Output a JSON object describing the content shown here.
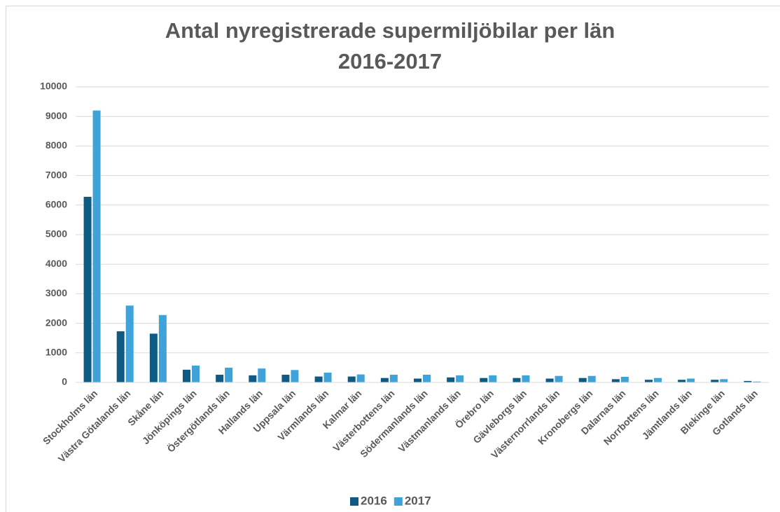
{
  "chart_data": {
    "type": "bar",
    "title": "Antal nyregistrerade supermiljöbilar per län 2016-2017",
    "categories": [
      "Stockholms län",
      "Västra Götalands län",
      "Skåne län",
      "Jönköpings län",
      "Östergötlands län",
      "Hallands län",
      "Uppsala län",
      "Värmlands län",
      "Kalmar län",
      "Västerbottens län",
      "Södermanlands län",
      "Västmanlands län",
      "Örebro län",
      "Gävleborgs län",
      "Västernorrlands län",
      "Kronobergs län",
      "Dalarnas län",
      "Norrbottens län",
      "Jämtlands län",
      "Blekinge län",
      "Gotlands län"
    ],
    "series": [
      {
        "name": "2016",
        "color": "#0e5a82",
        "values": [
          6280,
          1730,
          1650,
          430,
          260,
          240,
          260,
          200,
          200,
          150,
          130,
          170,
          150,
          150,
          130,
          150,
          110,
          90,
          90,
          90,
          50
        ]
      },
      {
        "name": "2017",
        "color": "#3fa2d9",
        "values": [
          9200,
          2600,
          2280,
          570,
          500,
          470,
          420,
          330,
          270,
          260,
          260,
          240,
          240,
          240,
          220,
          220,
          190,
          150,
          130,
          110,
          30
        ]
      }
    ],
    "ylim": [
      0,
      10000
    ],
    "yticks": [
      0,
      1000,
      2000,
      3000,
      4000,
      5000,
      6000,
      7000,
      8000,
      9000,
      10000
    ],
    "grid": true,
    "legend": "bottom"
  }
}
